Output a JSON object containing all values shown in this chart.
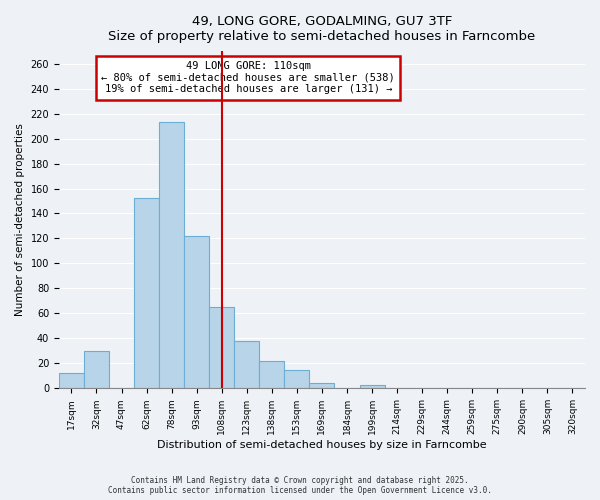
{
  "title": "49, LONG GORE, GODALMING, GU7 3TF",
  "subtitle": "Size of property relative to semi-detached houses in Farncombe",
  "xlabel": "Distribution of semi-detached houses by size in Farncombe",
  "ylabel": "Number of semi-detached properties",
  "bin_labels": [
    "17sqm",
    "32sqm",
    "47sqm",
    "62sqm",
    "78sqm",
    "93sqm",
    "108sqm",
    "123sqm",
    "138sqm",
    "153sqm",
    "169sqm",
    "184sqm",
    "199sqm",
    "214sqm",
    "229sqm",
    "244sqm",
    "259sqm",
    "275sqm",
    "290sqm",
    "305sqm",
    "320sqm"
  ],
  "bar_values": [
    12,
    30,
    0,
    152,
    213,
    122,
    65,
    38,
    22,
    15,
    4,
    0,
    3,
    0,
    0,
    0,
    0,
    0,
    0,
    0,
    0
  ],
  "bar_color": "#b8d4e8",
  "bar_edge_color": "#6aaed6",
  "vline_x": 6,
  "vline_color": "#cc0000",
  "annotation_title": "49 LONG GORE: 110sqm",
  "annotation_line1": "← 80% of semi-detached houses are smaller (538)",
  "annotation_line2": "19% of semi-detached houses are larger (131) →",
  "annotation_box_color": "#cc0000",
  "ylim": [
    0,
    270
  ],
  "yticks": [
    0,
    20,
    40,
    60,
    80,
    100,
    120,
    140,
    160,
    180,
    200,
    220,
    240,
    260
  ],
  "footnote1": "Contains HM Land Registry data © Crown copyright and database right 2025.",
  "footnote2": "Contains public sector information licensed under the Open Government Licence v3.0.",
  "bg_color": "#eef2f7",
  "grid_color": "#ffffff"
}
